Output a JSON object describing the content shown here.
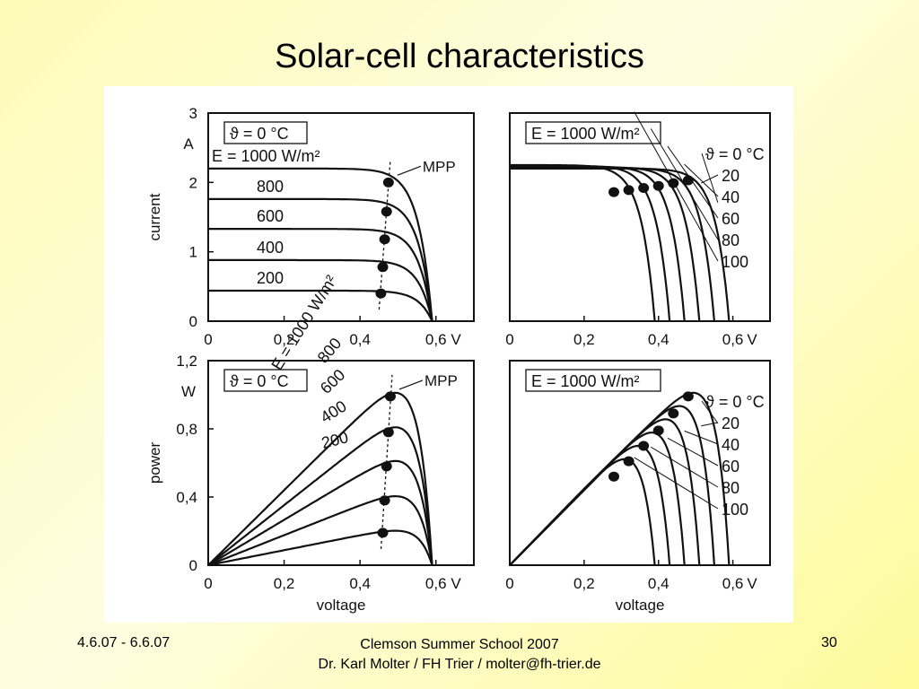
{
  "slide": {
    "title": "Solar-cell characteristics",
    "footer_left": "4.6.07 - 6.6.07",
    "footer_center_line1": "Clemson Summer School 2007",
    "footer_center_line2": "Dr. Karl Molter / FH Trier / molter@fh-trier.de",
    "footer_right": "30"
  },
  "colors": {
    "background": "#fdfbb6",
    "figure": "#ffffff",
    "ink": "#111111"
  },
  "chart_data": [
    {
      "type": "line",
      "id": "iv_irradiance",
      "ylabel": "current",
      "ylabel_unit": "A",
      "xlabel": "",
      "x_unit": "V",
      "xlim": [
        0,
        0.7
      ],
      "ylim": [
        0,
        3
      ],
      "xticks": [
        0,
        0.2,
        0.4,
        0.6
      ],
      "xtick_labels": [
        "0",
        "0,2",
        "0,4",
        "0,6"
      ],
      "yticks": [
        0,
        1,
        2,
        3
      ],
      "ytick_labels": [
        "0",
        "1",
        "2",
        "3"
      ],
      "condition_label": "ϑ = 0 °C",
      "mpp_label": "MPP",
      "series": [
        {
          "name": "E = 1000 W/m²",
          "isc": 2.2,
          "voc": 0.59,
          "mpp": [
            0.475,
            2.0
          ]
        },
        {
          "name": "800",
          "isc": 1.76,
          "voc": 0.59,
          "mpp": [
            0.47,
            1.58
          ]
        },
        {
          "name": "600",
          "isc": 1.33,
          "voc": 0.59,
          "mpp": [
            0.465,
            1.18
          ]
        },
        {
          "name": "400",
          "isc": 0.88,
          "voc": 0.59,
          "mpp": [
            0.46,
            0.78
          ]
        },
        {
          "name": "200",
          "isc": 0.44,
          "voc": 0.59,
          "mpp": [
            0.455,
            0.4
          ]
        }
      ]
    },
    {
      "type": "line",
      "id": "iv_temperature",
      "xlabel": "",
      "x_unit": "V",
      "xlim": [
        0,
        0.7
      ],
      "ylim": [
        0,
        3
      ],
      "xticks": [
        0,
        0.2,
        0.4,
        0.6
      ],
      "xtick_labels": [
        "0",
        "0,2",
        "0,4",
        "0,6"
      ],
      "condition_label": "E = 1000 W/m²",
      "series": [
        {
          "name": "ϑ = 0 °C",
          "isc": 2.2,
          "voc": 0.59,
          "mpp": [
            0.48,
            2.03
          ]
        },
        {
          "name": "20",
          "isc": 2.21,
          "voc": 0.55,
          "mpp": [
            0.44,
            1.99
          ]
        },
        {
          "name": "40",
          "isc": 2.22,
          "voc": 0.51,
          "mpp": [
            0.4,
            1.95
          ]
        },
        {
          "name": "60",
          "isc": 2.23,
          "voc": 0.47,
          "mpp": [
            0.36,
            1.92
          ]
        },
        {
          "name": "80",
          "isc": 2.24,
          "voc": 0.43,
          "mpp": [
            0.32,
            1.89
          ]
        },
        {
          "name": "100",
          "isc": 2.25,
          "voc": 0.39,
          "mpp": [
            0.28,
            1.86
          ]
        }
      ]
    },
    {
      "type": "line",
      "id": "pv_irradiance",
      "ylabel": "power",
      "ylabel_unit": "W",
      "xlabel": "voltage",
      "x_unit": "V",
      "xlim": [
        0,
        0.7
      ],
      "ylim": [
        0,
        1.2
      ],
      "xticks": [
        0,
        0.2,
        0.4,
        0.6
      ],
      "xtick_labels": [
        "0",
        "0,2",
        "0,4",
        "0,6"
      ],
      "yticks": [
        0,
        0.4,
        0.8,
        1.2
      ],
      "ytick_labels": [
        "0",
        "0,4",
        "0,8",
        "1,2"
      ],
      "condition_label": "ϑ = 0 °C",
      "mpp_label": "MPP",
      "series": [
        {
          "name": "E = 1000 W/m²",
          "isc": 2.2,
          "voc": 0.59,
          "mpp": [
            0.48,
            0.99
          ]
        },
        {
          "name": "800",
          "isc": 1.76,
          "voc": 0.59,
          "mpp": [
            0.475,
            0.78
          ]
        },
        {
          "name": "600",
          "isc": 1.33,
          "voc": 0.59,
          "mpp": [
            0.47,
            0.58
          ]
        },
        {
          "name": "400",
          "isc": 0.88,
          "voc": 0.59,
          "mpp": [
            0.465,
            0.38
          ]
        },
        {
          "name": "200",
          "isc": 0.44,
          "voc": 0.59,
          "mpp": [
            0.46,
            0.19
          ]
        }
      ]
    },
    {
      "type": "line",
      "id": "pv_temperature",
      "xlabel": "voltage",
      "x_unit": "V",
      "xlim": [
        0,
        0.7
      ],
      "ylim": [
        0,
        1.2
      ],
      "xticks": [
        0,
        0.2,
        0.4,
        0.6
      ],
      "xtick_labels": [
        "0",
        "0,2",
        "0,4",
        "0,6"
      ],
      "condition_label": "E = 1000 W/m²",
      "series": [
        {
          "name": "ϑ = 0 °C",
          "isc": 2.2,
          "voc": 0.59,
          "mpp": [
            0.48,
            0.99
          ]
        },
        {
          "name": "20",
          "isc": 2.21,
          "voc": 0.55,
          "mpp": [
            0.44,
            0.89
          ]
        },
        {
          "name": "40",
          "isc": 2.22,
          "voc": 0.51,
          "mpp": [
            0.4,
            0.79
          ]
        },
        {
          "name": "60",
          "isc": 2.23,
          "voc": 0.47,
          "mpp": [
            0.36,
            0.7
          ]
        },
        {
          "name": "80",
          "isc": 2.24,
          "voc": 0.43,
          "mpp": [
            0.32,
            0.61
          ]
        },
        {
          "name": "100",
          "isc": 2.25,
          "voc": 0.39,
          "mpp": [
            0.28,
            0.52
          ]
        }
      ]
    }
  ]
}
